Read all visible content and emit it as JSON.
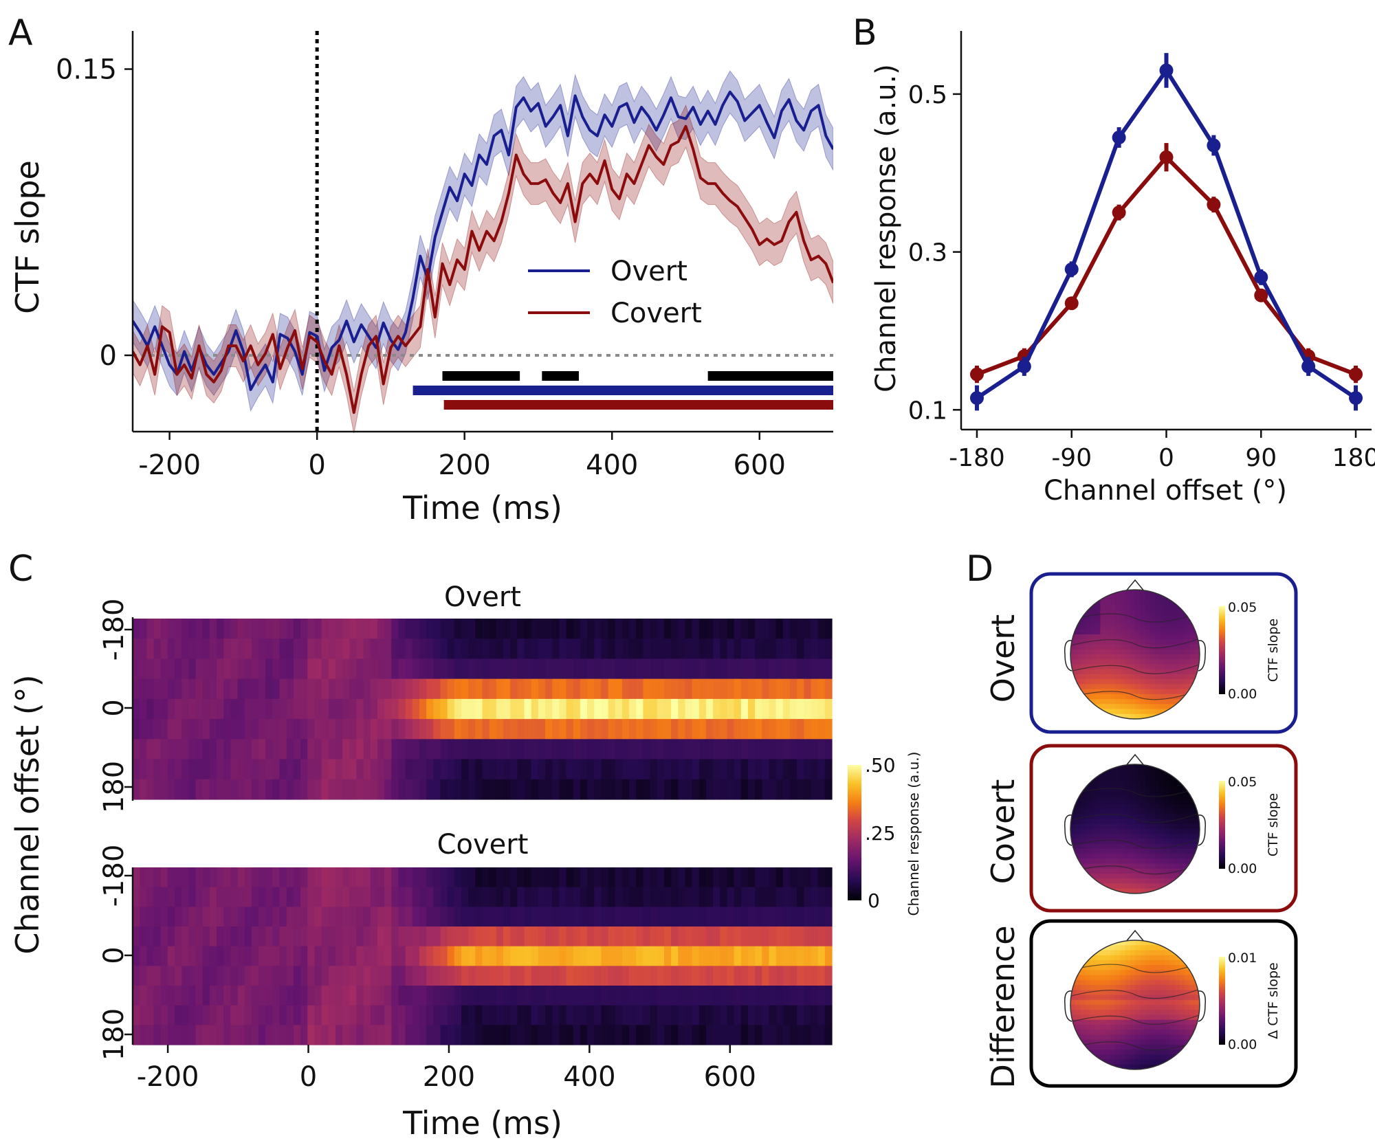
{
  "panels": {
    "a": "A",
    "b": "B",
    "c": "C",
    "d": "D"
  },
  "colors": {
    "overt": "#1a1f8f",
    "covert": "#8b0c0c",
    "black": "#000000",
    "zero_line": "#8a8a8a"
  },
  "chart_data": [
    {
      "id": "A",
      "type": "line",
      "xlabel": "Time (ms)",
      "ylabel": "CTF slope",
      "xlim": [
        -250,
        700
      ],
      "ylim": [
        -0.04,
        0.17
      ],
      "xticks": [
        "-200",
        "0",
        "200",
        "400",
        "600"
      ],
      "yticks": [
        "0",
        "0.15"
      ],
      "xtick_values": [
        -200,
        0,
        200,
        400,
        600
      ],
      "ytick_values": [
        0,
        0.15
      ],
      "legend_position": "center-right",
      "annotations": {
        "stimulus_onset_x": 0,
        "zero_line_y": 0
      },
      "series": [
        {
          "name": "Overt",
          "color": "#1a1f8f",
          "x": [
            -250,
            -240,
            -230,
            -220,
            -210,
            -200,
            -190,
            -180,
            -170,
            -160,
            -150,
            -140,
            -130,
            -120,
            -110,
            -100,
            -90,
            -80,
            -70,
            -60,
            -50,
            -40,
            -30,
            -20,
            -10,
            0,
            10,
            20,
            30,
            40,
            50,
            60,
            70,
            80,
            90,
            100,
            110,
            120,
            130,
            140,
            150,
            160,
            170,
            180,
            190,
            200,
            210,
            220,
            230,
            240,
            250,
            260,
            270,
            280,
            290,
            300,
            310,
            320,
            330,
            340,
            350,
            360,
            370,
            380,
            390,
            400,
            410,
            420,
            430,
            440,
            450,
            460,
            470,
            480,
            490,
            500,
            510,
            520,
            530,
            540,
            550,
            560,
            570,
            580,
            590,
            600,
            610,
            620,
            630,
            640,
            650,
            660,
            670,
            680,
            690,
            700
          ],
          "y": [
            0.018,
            0.012,
            0.005,
            0.015,
            0.005,
            -0.005,
            -0.01,
            0.002,
            -0.008,
            0.004,
            -0.005,
            -0.01,
            -0.004,
            0.002,
            0.013,
            0.002,
            -0.018,
            -0.011,
            -0.005,
            -0.014,
            0.011,
            0.009,
            0.002,
            -0.01,
            0.012,
            0.01,
            -0.008,
            0.004,
            0.008,
            0.018,
            0.007,
            0.016,
            0.01,
            0.004,
            0.017,
            0.008,
            0.003,
            0.012,
            0.03,
            0.052,
            0.04,
            0.062,
            0.075,
            0.088,
            0.081,
            0.095,
            0.089,
            0.105,
            0.1,
            0.115,
            0.118,
            0.105,
            0.13,
            0.135,
            0.128,
            0.132,
            0.12,
            0.125,
            0.131,
            0.115,
            0.136,
            0.125,
            0.118,
            0.115,
            0.126,
            0.12,
            0.13,
            0.132,
            0.122,
            0.13,
            0.125,
            0.118,
            0.126,
            0.135,
            0.125,
            0.124,
            0.13,
            0.121,
            0.128,
            0.121,
            0.131,
            0.138,
            0.133,
            0.123,
            0.127,
            0.131,
            0.122,
            0.114,
            0.128,
            0.134,
            0.123,
            0.118,
            0.128,
            0.131,
            0.115,
            0.108
          ],
          "band": 0.011
        },
        {
          "name": "Covert",
          "color": "#8b0c0c",
          "x": [
            -250,
            -240,
            -230,
            -220,
            -210,
            -200,
            -190,
            -180,
            -170,
            -160,
            -150,
            -140,
            -130,
            -120,
            -110,
            -100,
            -90,
            -80,
            -70,
            -60,
            -50,
            -40,
            -30,
            -20,
            -10,
            0,
            10,
            20,
            30,
            40,
            50,
            60,
            70,
            80,
            90,
            100,
            110,
            120,
            130,
            140,
            150,
            160,
            170,
            180,
            190,
            200,
            210,
            220,
            230,
            240,
            250,
            260,
            270,
            280,
            290,
            300,
            310,
            320,
            330,
            340,
            350,
            360,
            370,
            380,
            390,
            400,
            410,
            420,
            430,
            440,
            450,
            460,
            470,
            480,
            490,
            500,
            510,
            520,
            530,
            540,
            550,
            560,
            570,
            580,
            590,
            600,
            610,
            620,
            630,
            640,
            650,
            660,
            670,
            680,
            690,
            700
          ],
          "y": [
            0.002,
            -0.005,
            0.005,
            -0.01,
            0.015,
            0.012,
            -0.01,
            -0.005,
            -0.012,
            0.005,
            -0.01,
            -0.014,
            -0.008,
            0.005,
            0.005,
            -0.003,
            0.005,
            -0.005,
            0.001,
            0.011,
            -0.007,
            0.004,
            0.013,
            -0.007,
            0.01,
            0.007,
            -0.003,
            -0.01,
            0.005,
            -0.01,
            -0.03,
            -0.01,
            0.005,
            0.01,
            -0.015,
            0.004,
            0.01,
            0.005,
            0.01,
            0.015,
            0.045,
            0.02,
            0.048,
            0.037,
            0.05,
            0.045,
            0.065,
            0.055,
            0.065,
            0.06,
            0.07,
            0.085,
            0.105,
            0.095,
            0.09,
            0.09,
            0.092,
            0.085,
            0.08,
            0.09,
            0.07,
            0.09,
            0.095,
            0.09,
            0.102,
            0.087,
            0.082,
            0.095,
            0.09,
            0.1,
            0.11,
            0.104,
            0.1,
            0.11,
            0.112,
            0.12,
            0.108,
            0.093,
            0.09,
            0.09,
            0.085,
            0.081,
            0.078,
            0.072,
            0.066,
            0.058,
            0.061,
            0.058,
            0.06,
            0.07,
            0.075,
            0.06,
            0.05,
            0.052,
            0.048,
            0.038
          ],
          "band": 0.011
        }
      ],
      "significance_bars": [
        {
          "color": "#000000",
          "segments": [
            [
              170,
              275
            ],
            [
              305,
              355
            ],
            [
              530,
              700
            ]
          ]
        },
        {
          "color": "#1a1f8f",
          "segments": [
            [
              130,
              700
            ]
          ]
        },
        {
          "color": "#8b0c0c",
          "segments": [
            [
              172,
              700
            ]
          ]
        }
      ]
    },
    {
      "id": "B",
      "type": "line",
      "xlabel": "Channel offset (°)",
      "ylabel": "Channel response (a.u.)",
      "xlim": [
        -195,
        195
      ],
      "ylim": [
        0.075,
        0.58
      ],
      "xticks": [
        "-180",
        "-90",
        "0",
        "90",
        "180"
      ],
      "yticks": [
        "0.1",
        "0.3",
        "0.5"
      ],
      "xtick_values": [
        -180,
        -90,
        0,
        90,
        180
      ],
      "ytick_values": [
        0.1,
        0.3,
        0.5
      ],
      "series": [
        {
          "name": "Overt",
          "color": "#1a1f8f",
          "x": [
            -180,
            -135,
            -90,
            -45,
            0,
            45,
            90,
            135,
            180
          ],
          "y": [
            0.115,
            0.155,
            0.278,
            0.445,
            0.53,
            0.435,
            0.268,
            0.155,
            0.115
          ],
          "err": [
            0.016,
            0.012,
            0.01,
            0.013,
            0.022,
            0.013,
            0.01,
            0.012,
            0.016
          ]
        },
        {
          "name": "Covert",
          "color": "#8b0c0c",
          "x": [
            -180,
            -135,
            -90,
            -45,
            0,
            45,
            90,
            135,
            180
          ],
          "y": [
            0.145,
            0.168,
            0.235,
            0.35,
            0.42,
            0.36,
            0.245,
            0.168,
            0.145
          ],
          "err": [
            0.011,
            0.01,
            0.008,
            0.01,
            0.018,
            0.01,
            0.008,
            0.01,
            0.011
          ]
        }
      ]
    },
    {
      "id": "C",
      "type": "heatmap",
      "xlabel": "Time (ms)",
      "ylabel": "Channel offset (°)",
      "xlim": [
        -250,
        745
      ],
      "xticks": [
        "-200",
        "0",
        "200",
        "400",
        "600"
      ],
      "xtick_values": [
        -200,
        0,
        200,
        400,
        600
      ],
      "yticks": [
        "-180",
        "0",
        "180"
      ],
      "colorbar": {
        "label": "Channel response (a.u.)",
        "ticks": [
          ".50",
          ".25",
          "0"
        ],
        "range": [
          0,
          0.5
        ],
        "colormap": "inferno"
      },
      "maps": [
        {
          "title": "Overt",
          "baseline_level": 0.23,
          "peak": 0.5,
          "onset_ms": 130
        },
        {
          "title": "Covert",
          "baseline_level": 0.24,
          "peak": 0.43,
          "onset_ms": 150
        }
      ]
    },
    {
      "id": "D",
      "type": "heatmap",
      "topomaps": [
        {
          "label": "Overt",
          "frame_color": "#1a1f8f",
          "colorbar_label": "CTF slope",
          "cb_max": "0.05",
          "cb_min": "0.00",
          "pattern": "posterior"
        },
        {
          "label": "Covert",
          "frame_color": "#8b0c0c",
          "colorbar_label": "CTF slope",
          "cb_max": "0.05",
          "cb_min": "0.00",
          "pattern": "posterior_weak"
        },
        {
          "label": "Difference",
          "frame_color": "#000000",
          "colorbar_label": "Δ CTF slope",
          "cb_max": "0.01",
          "cb_min": "0.00",
          "pattern": "frontal"
        }
      ]
    }
  ]
}
